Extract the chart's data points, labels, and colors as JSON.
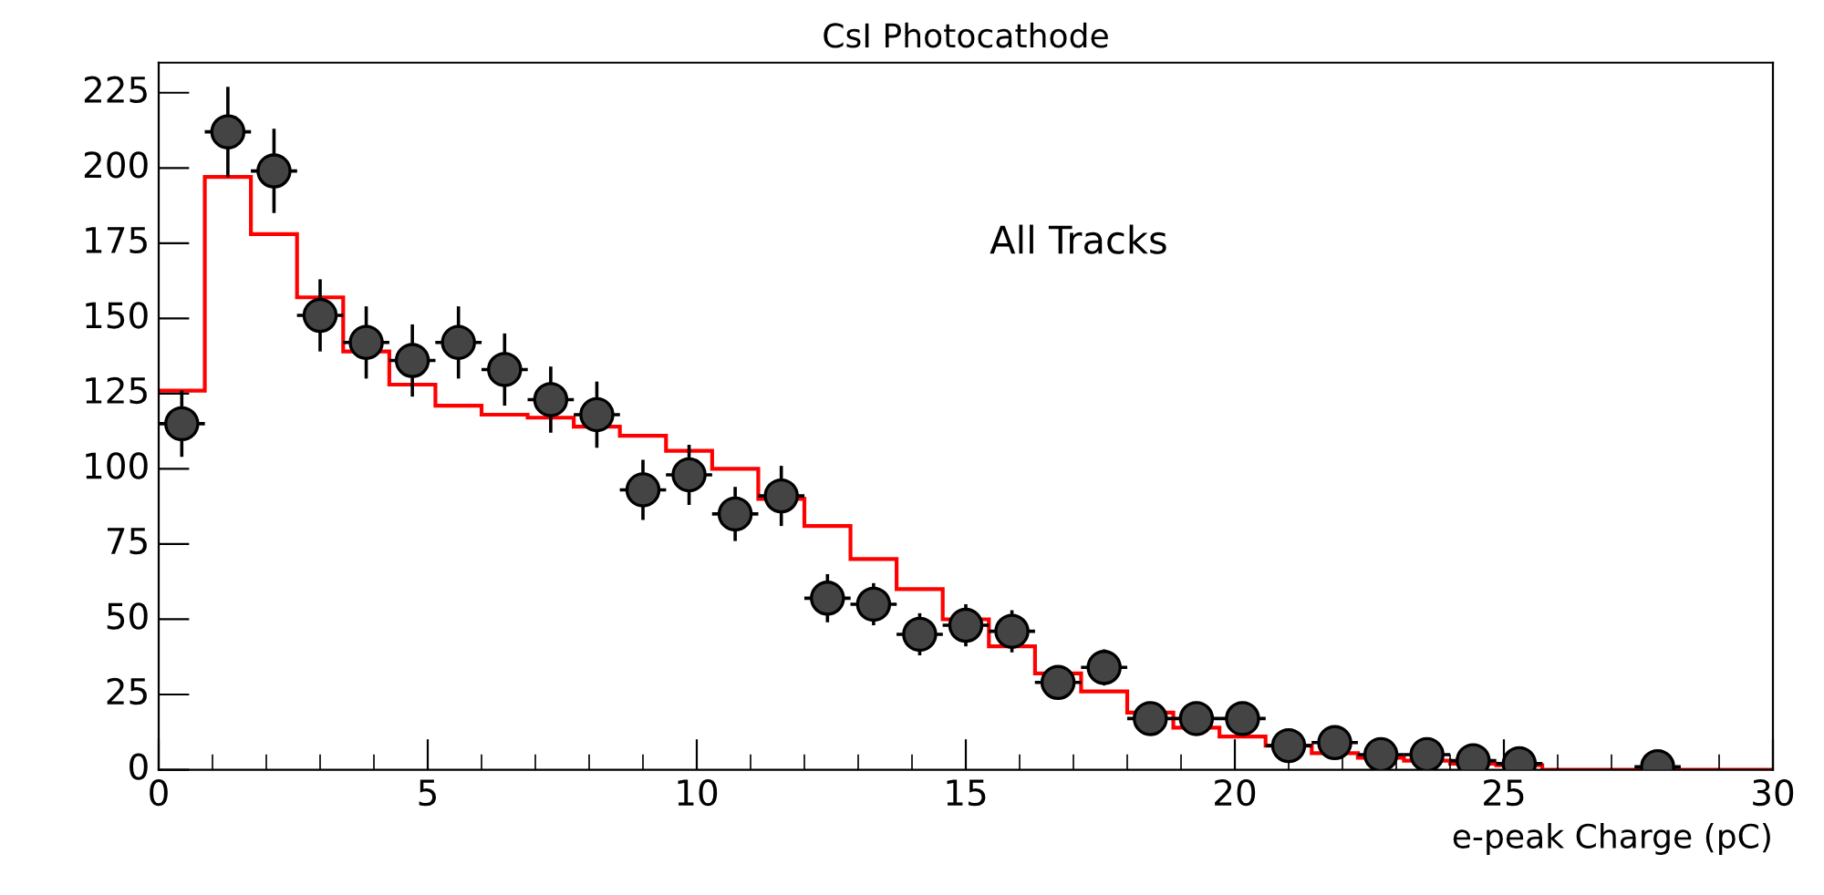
{
  "chart_data": {
    "type": "histogram",
    "title": "CsI Photocathode",
    "xlabel": "e-peak Charge (pC)",
    "annotations": [
      "All Tracks"
    ],
    "bins": [
      0,
      0.857,
      1.714,
      2.571,
      3.429,
      4.286,
      5.143,
      6.0,
      6.857,
      7.714,
      8.571,
      9.429,
      10.286,
      11.143,
      12.0,
      12.857,
      13.714,
      14.571,
      15.429,
      16.286,
      17.143,
      18.0,
      18.857,
      19.714,
      20.571,
      21.429,
      22.286,
      23.143,
      24.0,
      24.857,
      25.714,
      26.571,
      27.429,
      28.286,
      29.143,
      30
    ],
    "xlim": [
      0,
      30
    ],
    "xticks": [
      0,
      5,
      10,
      15,
      20,
      25,
      30
    ],
    "ylim": [
      0,
      235
    ],
    "yticks": [
      0,
      25,
      50,
      75,
      100,
      125,
      150,
      175,
      200,
      225
    ],
    "grid": false,
    "marker": "circle",
    "series": [
      {
        "color": "#ff0000",
        "values": [
          126,
          197,
          178,
          157,
          139,
          128,
          121,
          118,
          117,
          114,
          111,
          106,
          100,
          90,
          81,
          70,
          60,
          50,
          41,
          32,
          26,
          19,
          14,
          11,
          8,
          5.5,
          4,
          3,
          2,
          1.5,
          0,
          0,
          0,
          0,
          0
        ]
      },
      {
        "type": "scatter",
        "color": "#000000",
        "x": [
          0.429,
          1.286,
          2.143,
          3.0,
          3.857,
          4.714,
          5.571,
          6.429,
          7.286,
          8.143,
          9.0,
          9.857,
          10.714,
          11.571,
          12.429,
          13.286,
          14.143,
          15.0,
          15.857,
          16.714,
          17.571,
          18.429,
          19.286,
          20.143,
          21.0,
          21.857,
          22.714,
          23.571,
          24.429,
          25.286,
          27.857
        ],
        "values": [
          115,
          212,
          199,
          151,
          142,
          136,
          142,
          133,
          123,
          118,
          93,
          98,
          85,
          91,
          57,
          55,
          45,
          48,
          46,
          29,
          34,
          17,
          17,
          17,
          8,
          9,
          5,
          5,
          3,
          2,
          1
        ],
        "errors": [
          11,
          15,
          14,
          12,
          12,
          12,
          12,
          12,
          11,
          11,
          10,
          10,
          9,
          10,
          8,
          7,
          7,
          7,
          7,
          5,
          6,
          4,
          4,
          4,
          3,
          3,
          2,
          2,
          2,
          1,
          null
        ],
        "xerrors": [
          0.43,
          0.43,
          0.43,
          0.43,
          0.43,
          0.43,
          0.43,
          0.43,
          0.43,
          0.43,
          0.43,
          0.43,
          0.43,
          0.43,
          0.43,
          0.43,
          0.43,
          0.43,
          0.43,
          0.43,
          0.43,
          0.43,
          0.43,
          0.43,
          0.43,
          0.43,
          0.43,
          0.43,
          0.43,
          0.43,
          0.43
        ]
      }
    ]
  }
}
